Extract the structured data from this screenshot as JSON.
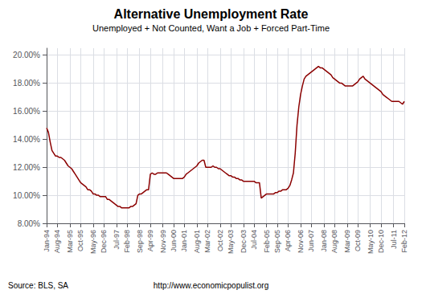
{
  "chart_data": {
    "type": "line",
    "title": "Alternative Unemployment Rate",
    "subtitle": "Unemployed + Not Counted, Want a Job + Forced Part-Time",
    "annotations": [
      "Source: BLS, SA",
      "http://www.economicpopulist.org"
    ],
    "color": "#8B0000",
    "grid": true,
    "ylim": [
      0.08,
      0.205
    ],
    "yticks": [
      {
        "value": 0.08,
        "label": "8.00%"
      },
      {
        "value": 0.1,
        "label": "10.00%"
      },
      {
        "value": 0.12,
        "label": "12.00%"
      },
      {
        "value": 0.14,
        "label": "14.00%"
      },
      {
        "value": 0.16,
        "label": "16.00%"
      },
      {
        "value": 0.18,
        "label": "18.00%"
      },
      {
        "value": 0.2,
        "label": "20.00%"
      }
    ],
    "categories": [
      "Jan-94",
      null,
      null,
      null,
      null,
      null,
      "Aug-94",
      null,
      null,
      null,
      null,
      null,
      null,
      "Mar-95",
      null,
      null,
      null,
      null,
      null,
      "Oct-95",
      null,
      null,
      null,
      null,
      null,
      null,
      "May-96",
      null,
      null,
      null,
      null,
      null,
      "Dec-96",
      null,
      null,
      null,
      null,
      null,
      null,
      "Jul-97",
      null,
      null,
      null,
      null,
      null,
      "Feb-98",
      null,
      null,
      null,
      null,
      null,
      null,
      "Sep-98",
      null,
      null,
      null,
      null,
      null,
      "Apr-99",
      null,
      null,
      null,
      null,
      null,
      null,
      "Nov-99",
      null,
      null,
      null,
      null,
      null,
      "Jun-00",
      null,
      null,
      null,
      null,
      null,
      "Jan-01",
      null,
      null,
      null,
      null,
      null,
      null,
      "Aug-01",
      null,
      null,
      null,
      null,
      null,
      "Mar-02",
      null,
      null,
      null,
      null,
      null,
      null,
      "Oct-02",
      null,
      null,
      null,
      null,
      null,
      "May-03",
      null,
      null,
      null,
      null,
      null,
      null,
      "Dec-03",
      null,
      null,
      null,
      null,
      null,
      "Jul-04",
      null,
      null,
      null,
      null,
      null,
      null,
      "Feb-05",
      null,
      null,
      null,
      null,
      null,
      "Sep-05",
      null,
      null,
      null,
      null,
      null,
      "Apr-06",
      null,
      null,
      null,
      null,
      null,
      null,
      "Nov-06",
      null,
      null,
      null,
      null,
      null,
      "Jun-07",
      null,
      null,
      null,
      null,
      null,
      null,
      "Jan-08",
      null,
      null,
      null,
      null,
      null,
      "Aug-08",
      null,
      null,
      null,
      null,
      null,
      null,
      "Mar-09",
      null,
      null,
      null,
      null,
      null,
      "Oct-09",
      null,
      null,
      null,
      null,
      null,
      null,
      "May-10",
      null,
      null,
      null,
      null,
      null,
      "Dec-10",
      null,
      null,
      null,
      null,
      null,
      null,
      "Jul-11",
      null,
      null,
      null,
      null,
      null,
      "Feb-12"
    ],
    "values": [
      0.148,
      0.145,
      0.138,
      0.132,
      0.13,
      0.128,
      0.128,
      0.127,
      0.127,
      0.126,
      0.125,
      0.123,
      0.121,
      0.12,
      0.119,
      0.117,
      0.115,
      0.113,
      0.111,
      0.109,
      0.108,
      0.107,
      0.106,
      0.104,
      0.104,
      0.103,
      0.101,
      0.101,
      0.1,
      0.1,
      0.099,
      0.099,
      0.099,
      0.099,
      0.097,
      0.097,
      0.096,
      0.095,
      0.094,
      0.093,
      0.092,
      0.092,
      0.091,
      0.091,
      0.091,
      0.091,
      0.091,
      0.092,
      0.092,
      0.093,
      0.094,
      0.1,
      0.101,
      0.101,
      0.102,
      0.103,
      0.104,
      0.104,
      0.115,
      0.116,
      0.115,
      0.115,
      0.116,
      0.116,
      0.116,
      0.116,
      0.116,
      0.116,
      0.115,
      0.114,
      0.113,
      0.112,
      0.112,
      0.112,
      0.112,
      0.112,
      0.112,
      0.113,
      0.115,
      0.116,
      0.117,
      0.118,
      0.119,
      0.12,
      0.121,
      0.123,
      0.124,
      0.125,
      0.125,
      0.12,
      0.12,
      0.12,
      0.12,
      0.121,
      0.12,
      0.12,
      0.119,
      0.119,
      0.118,
      0.117,
      0.116,
      0.115,
      0.114,
      0.114,
      0.113,
      0.113,
      0.112,
      0.112,
      0.111,
      0.111,
      0.11,
      0.11,
      0.11,
      0.11,
      0.11,
      0.11,
      0.11,
      0.109,
      0.109,
      0.109,
      0.098,
      0.099,
      0.1,
      0.101,
      0.101,
      0.101,
      0.101,
      0.101,
      0.102,
      0.102,
      0.103,
      0.103,
      0.104,
      0.104,
      0.104,
      0.105,
      0.107,
      0.111,
      0.116,
      0.13,
      0.15,
      0.163,
      0.172,
      0.178,
      0.183,
      0.185,
      0.186,
      0.187,
      0.188,
      0.189,
      0.19,
      0.191,
      0.192,
      0.191,
      0.191,
      0.19,
      0.189,
      0.188,
      0.187,
      0.186,
      0.184,
      0.183,
      0.182,
      0.181,
      0.18,
      0.18,
      0.179,
      0.178,
      0.178,
      0.178,
      0.178,
      0.178,
      0.179,
      0.18,
      0.181,
      0.183,
      0.184,
      0.185,
      0.183,
      0.182,
      0.181,
      0.18,
      0.179,
      0.178,
      0.177,
      0.176,
      0.175,
      0.174,
      0.172,
      0.171,
      0.17,
      0.169,
      0.168,
      0.167,
      0.167,
      0.167,
      0.167,
      0.167,
      0.166,
      0.165,
      0.167
    ]
  }
}
